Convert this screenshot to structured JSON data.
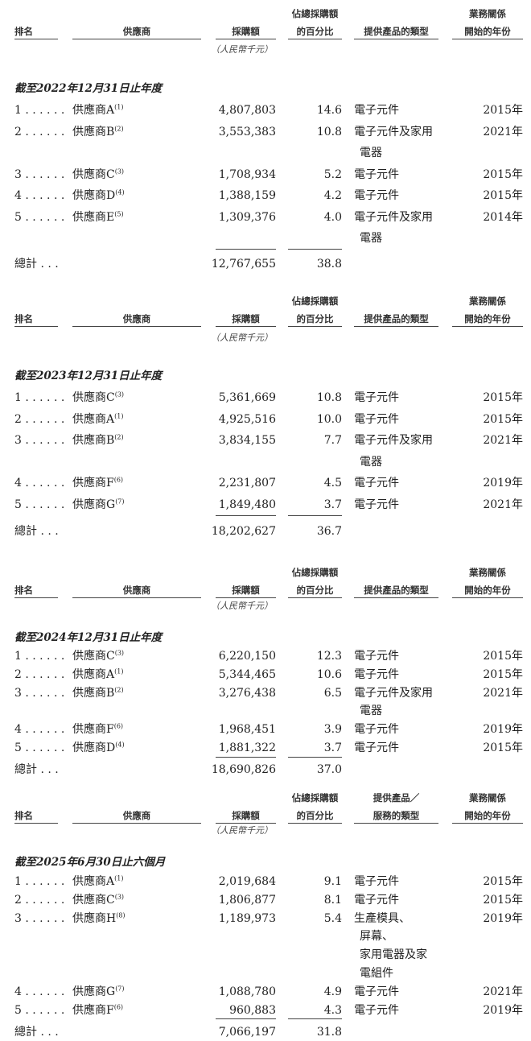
{
  "headers": {
    "rank": "排名",
    "supplier": "供應商",
    "amount": "採購額",
    "pct_line1": "佔總採購額",
    "pct_line2": "的百分比",
    "product": "提供產品的類型",
    "product_alt_line1": "提供產品／",
    "product_alt_line2": "服務的類型",
    "year_line1": "業務關係",
    "year_line2": "開始的年份",
    "units": "（人民幣千元）"
  },
  "sections": [
    {
      "period": "截至2022年12月31日止年度",
      "rows": [
        {
          "rank": "1 . . . . . .",
          "supplier": "供應商A",
          "note": "(1)",
          "amount": "4,807,803",
          "pct": "14.6",
          "product": [
            "電子元件"
          ],
          "year": "2015年"
        },
        {
          "rank": "2 . . . . . .",
          "supplier": "供應商B",
          "note": "(2)",
          "amount": "3,553,383",
          "pct": "10.8",
          "product": [
            "電子元件及家用",
            "電器"
          ],
          "year": "2021年"
        },
        {
          "rank": "3 . . . . . .",
          "supplier": "供應商C",
          "note": "(3)",
          "amount": "1,708,934",
          "pct": "5.2",
          "product": [
            "電子元件"
          ],
          "year": "2015年"
        },
        {
          "rank": "4 . . . . . .",
          "supplier": "供應商D",
          "note": "(4)",
          "amount": "1,388,159",
          "pct": "4.2",
          "product": [
            "電子元件"
          ],
          "year": "2015年"
        },
        {
          "rank": "5 . . . . . .",
          "supplier": "供應商E",
          "note": "(5)",
          "amount": "1,309,376",
          "pct": "4.0",
          "product": [
            "電子元件及家用",
            "電器"
          ],
          "year": "2014年"
        }
      ],
      "total": {
        "label": "總計 . . .",
        "amount": "12,767,655",
        "pct": "38.8"
      }
    },
    {
      "period": "截至2023年12月31日止年度",
      "rows": [
        {
          "rank": "1 . . . . . .",
          "supplier": "供應商C",
          "note": "(3)",
          "amount": "5,361,669",
          "pct": "10.8",
          "product": [
            "電子元件"
          ],
          "year": "2015年"
        },
        {
          "rank": "2 . . . . . .",
          "supplier": "供應商A",
          "note": "(1)",
          "amount": "4,925,516",
          "pct": "10.0",
          "product": [
            "電子元件"
          ],
          "year": "2015年"
        },
        {
          "rank": "3 . . . . . .",
          "supplier": "供應商B",
          "note": "(2)",
          "amount": "3,834,155",
          "pct": "7.7",
          "product": [
            "電子元件及家用",
            "電器"
          ],
          "year": "2021年"
        },
        {
          "rank": "4 . . . . . .",
          "supplier": "供應商F",
          "note": "(6)",
          "amount": "2,231,807",
          "pct": "4.5",
          "product": [
            "電子元件"
          ],
          "year": "2019年"
        },
        {
          "rank": "5 . . . . . .",
          "supplier": "供應商G",
          "note": "(7)",
          "amount": "1,849,480",
          "pct": "3.7",
          "product": [
            "電子元件"
          ],
          "year": "2021年"
        }
      ],
      "total": {
        "label": "總計 . . .",
        "amount": "18,202,627",
        "pct": "36.7"
      }
    },
    {
      "period": "截至2024年12月31日止年度",
      "rows": [
        {
          "rank": "1 . . . . . .",
          "supplier": "供應商C",
          "note": "(3)",
          "amount": "6,220,150",
          "pct": "12.3",
          "product": [
            "電子元件"
          ],
          "year": "2015年"
        },
        {
          "rank": "2 . . . . . .",
          "supplier": "供應商A",
          "note": "(1)",
          "amount": "5,344,465",
          "pct": "10.6",
          "product": [
            "電子元件"
          ],
          "year": "2015年"
        },
        {
          "rank": "3 . . . . . .",
          "supplier": "供應商B",
          "note": "(2)",
          "amount": "3,276,438",
          "pct": "6.5",
          "product": [
            "電子元件及家用",
            "電器"
          ],
          "year": "2021年"
        },
        {
          "rank": "4 . . . . . .",
          "supplier": "供應商F",
          "note": "(6)",
          "amount": "1,968,451",
          "pct": "3.9",
          "product": [
            "電子元件"
          ],
          "year": "2019年"
        },
        {
          "rank": "5 . . . . . .",
          "supplier": "供應商D",
          "note": "(4)",
          "amount": "1,881,322",
          "pct": "3.7",
          "product": [
            "電子元件"
          ],
          "year": "2015年"
        }
      ],
      "total": {
        "label": "總計 . . .",
        "amount": "18,690,826",
        "pct": "37.0"
      }
    },
    {
      "period": "截至2025年6月30日止六個月",
      "rows": [
        {
          "rank": "1 . . . . . .",
          "supplier": "供應商A",
          "note": "(1)",
          "amount": "2,019,684",
          "pct": "9.1",
          "product": [
            "電子元件"
          ],
          "year": "2015年"
        },
        {
          "rank": "2 . . . . . .",
          "supplier": "供應商C",
          "note": "(3)",
          "amount": "1,806,877",
          "pct": "8.1",
          "product": [
            "電子元件"
          ],
          "year": "2015年"
        },
        {
          "rank": "3 . . . . . .",
          "supplier": "供應商H",
          "note": "(8)",
          "amount": "1,189,973",
          "pct": "5.4",
          "product": [
            "生產模具、",
            "屏幕、",
            "家用電器及家",
            "電組件"
          ],
          "year": "2019年"
        },
        {
          "rank": "4 . . . . . .",
          "supplier": "供應商G",
          "note": "(7)",
          "amount": "1,088,780",
          "pct": "4.9",
          "product": [
            "電子元件"
          ],
          "year": "2021年"
        },
        {
          "rank": "5 . . . . . .",
          "supplier": "供應商F",
          "note": "(6)",
          "amount": "960,883",
          "pct": "4.3",
          "product": [
            "電子元件"
          ],
          "year": "2019年"
        }
      ],
      "total": {
        "label": "總計 . . .",
        "amount": "7,066,197",
        "pct": "31.8"
      }
    }
  ]
}
